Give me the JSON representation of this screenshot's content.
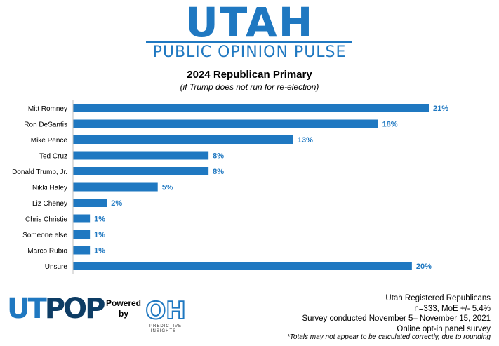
{
  "header": {
    "brand_title": "UTAH",
    "brand_subtitle": "PUBLIC OPINION PULSE"
  },
  "chart_data": {
    "type": "bar",
    "orientation": "horizontal",
    "title": "2024 Republican Primary",
    "subtitle": "(if Trump does not run for re-election)",
    "categories": [
      "Mitt Romney",
      "Ron DeSantis",
      "Mike Pence",
      "Ted Cruz",
      "Donald Trump, Jr.",
      "Nikki Haley",
      "Liz Cheney",
      "Chris Christie",
      "Someone else",
      "Marco Rubio",
      "Unsure"
    ],
    "values": [
      21,
      18,
      13,
      8,
      8,
      5,
      2,
      1,
      1,
      1,
      20
    ],
    "value_labels": [
      "21%",
      "18%",
      "13%",
      "8%",
      "8%",
      "5%",
      "2%",
      "1%",
      "1%",
      "1%",
      "20%"
    ],
    "bar_color": "#1f78c1",
    "xlim": [
      0,
      21
    ],
    "grid": false,
    "legend": "none"
  },
  "footer": {
    "logo_ut": "UT",
    "logo_pop": "POP",
    "powered_by": "Powered by",
    "partner_logo": "OH",
    "partner_name": "PREDICTIVE INSIGHTS",
    "lines": [
      "Utah Registered Republicans",
      "n=333, MoE +/- 5.4%",
      "Survey conducted November 5– November 15, 2021",
      "Online opt-in panel survey"
    ],
    "note": "*Totals may not appear to be calculated correctly, due to rounding"
  }
}
